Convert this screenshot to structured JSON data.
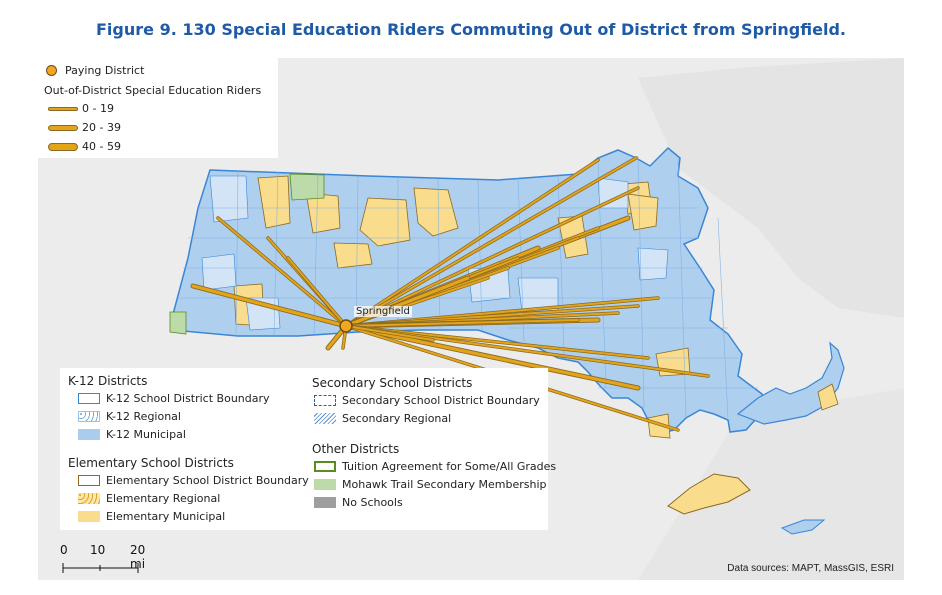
{
  "figure": {
    "title": "Figure 9. 130 Special Education Riders Commuting Out of District from Springfield."
  },
  "map": {
    "city_label": "Springfield",
    "colors": {
      "k12_fill": "#a9ccef",
      "k12_border": "#3a86d6",
      "elementary_fill": "#f9dc8c",
      "route_line": "#d39b1c",
      "paying_district_marker": "#f3a61e",
      "background": "#ececec"
    }
  },
  "legend_top": {
    "paying_district": "Paying District",
    "riders_title": "Out-of-District Special Education Riders",
    "classes": [
      {
        "label": "0 - 19"
      },
      {
        "label": "20 - 39"
      },
      {
        "label": "40 - 59"
      }
    ]
  },
  "legend_bottom": {
    "k12": {
      "title": "K-12 Districts",
      "items": [
        "K-12 School District Boundary",
        "K-12 Regional",
        "K-12 Municipal"
      ]
    },
    "elementary": {
      "title": "Elementary School Districts",
      "items": [
        "Elementary School District Boundary",
        "Elementary Regional",
        "Elementary Municipal"
      ]
    },
    "secondary": {
      "title": "Secondary School Districts",
      "items": [
        "Secondary School District Boundary",
        "Secondary Regional"
      ]
    },
    "other": {
      "title": "Other Districts",
      "items": [
        "Tuition Agreement for Some/All Grades",
        "Mohawk Trail Secondary Membership",
        "No Schools"
      ]
    }
  },
  "scale_bar": {
    "ticks": [
      "0",
      "10",
      "20 mi"
    ]
  },
  "source": "Data sources: MAPT, MassGIS, ESRI"
}
